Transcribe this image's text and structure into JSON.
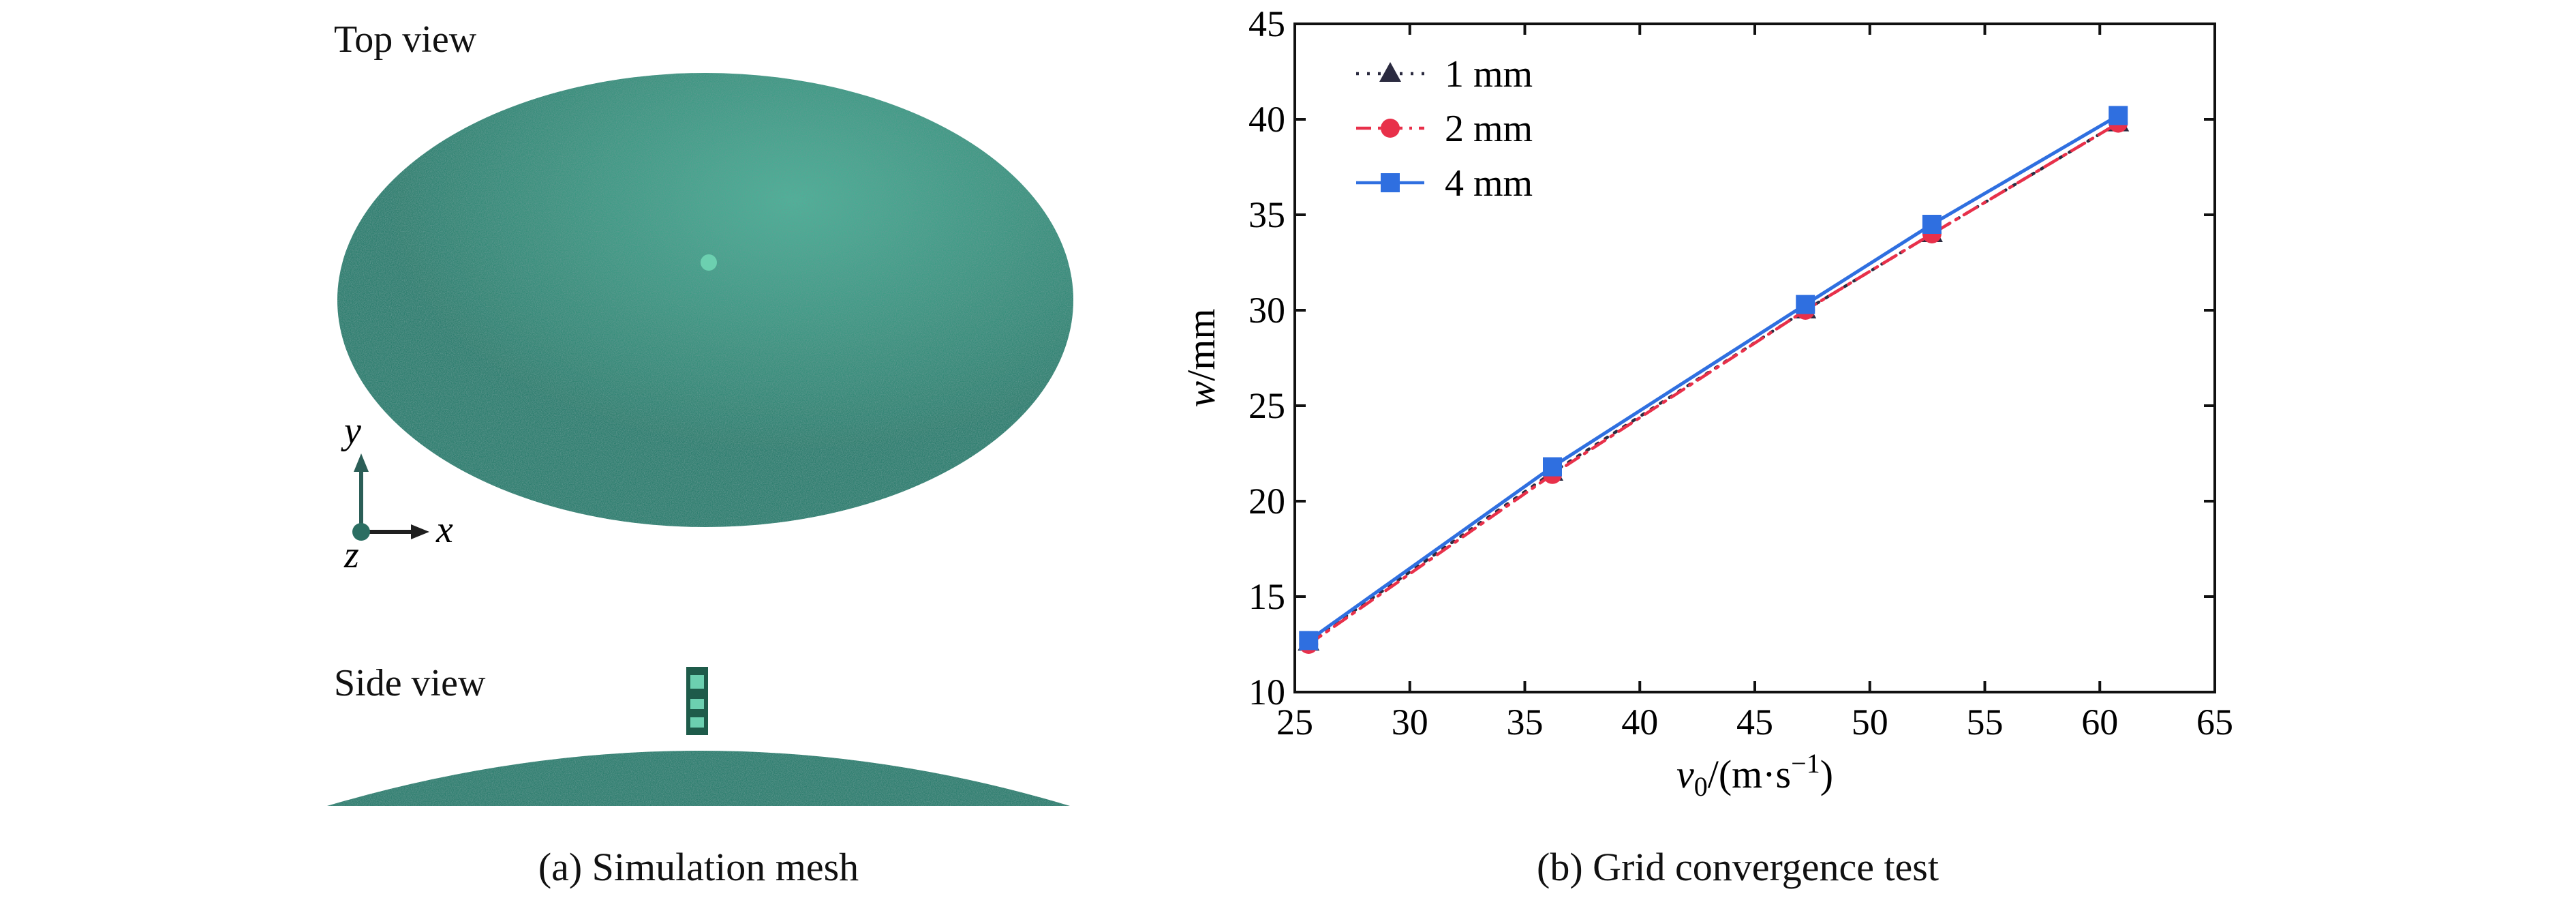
{
  "panel_a": {
    "top_view_label": "Top view",
    "side_view_label": "Side view",
    "axis_y_label": "y",
    "axis_x_label": "x",
    "axis_z_label": "z",
    "caption": "(a) Simulation mesh",
    "mesh_color": "#3aa58a"
  },
  "panel_b": {
    "caption": "(b) Grid convergence test"
  },
  "chart_data": {
    "type": "line",
    "title": "",
    "xlabel_main": "v",
    "xlabel_sub": "0",
    "xlabel_rest": "/(m·s",
    "xlabel_sup": "−1",
    "xlabel_end": ")",
    "ylabel_main": "w",
    "ylabel_rest": "/mm",
    "xlim": [
      25,
      65
    ],
    "ylim": [
      10,
      45
    ],
    "xticks": [
      25,
      30,
      35,
      40,
      45,
      50,
      55,
      60,
      65
    ],
    "yticks": [
      10,
      15,
      20,
      25,
      30,
      35,
      40,
      45
    ],
    "legend_position": "top-left",
    "grid": false,
    "series": [
      {
        "name": "1 mm",
        "color": "#2b2b40",
        "marker": "triangle",
        "dash": "dotted",
        "x": [
          25.6,
          36.2,
          47.2,
          52.7,
          60.8
        ],
        "y": [
          12.6,
          21.5,
          30.0,
          34.0,
          39.8
        ]
      },
      {
        "name": "2 mm",
        "color": "#e8304a",
        "marker": "circle",
        "dash": "dashdot",
        "x": [
          25.6,
          36.2,
          47.2,
          52.7,
          60.8
        ],
        "y": [
          12.5,
          21.4,
          30.0,
          34.0,
          39.8
        ]
      },
      {
        "name": "4 mm",
        "color": "#2f6fe0",
        "marker": "square",
        "dash": "solid",
        "x": [
          25.6,
          36.2,
          47.2,
          52.7,
          60.8
        ],
        "y": [
          12.7,
          21.8,
          30.3,
          34.5,
          40.2
        ]
      }
    ]
  }
}
